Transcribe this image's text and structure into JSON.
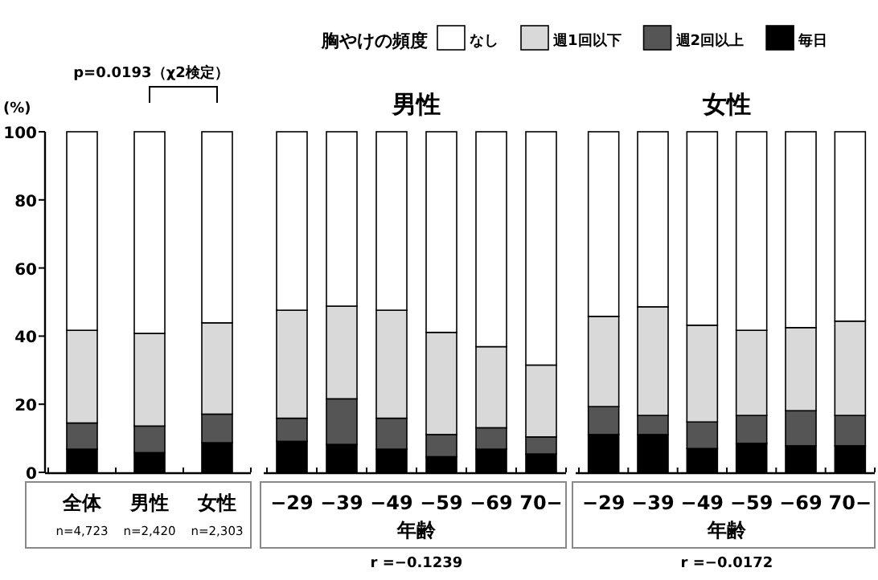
{
  "chart_data": [
    {
      "type": "bar",
      "stacked": true,
      "ylabel": "(%)",
      "legend_title": "胸やけの頻度",
      "legend": "top",
      "ylim": [
        0,
        100
      ],
      "yticks": [
        0,
        20,
        40,
        60,
        80,
        100
      ],
      "categories": [
        "全体\nn=4,723",
        "男性\nn=2,420",
        "女性\nn=2,303"
      ],
      "annotations": [
        "p=0.0193（χ2検定）"
      ],
      "series": [
        {
          "name": "毎日",
          "color": "#000000",
          "values": [
            6.8,
            5.8,
            8.7
          ]
        },
        {
          "name": "週2回以上",
          "color": "#555555",
          "values": [
            7.7,
            7.8,
            8.4
          ]
        },
        {
          "name": "週1回以下",
          "color": "#d9d9d9",
          "values": [
            27.2,
            27.2,
            26.8
          ]
        },
        {
          "name": "なし",
          "color": "#ffffff",
          "values": [
            58.3,
            59.2,
            56.1
          ]
        }
      ]
    },
    {
      "type": "bar",
      "stacked": true,
      "title": "男性",
      "xlabel": "年齢",
      "ylim": [
        0,
        100
      ],
      "tick_labels": "x",
      "categories": [
        "−29",
        "−39",
        "−49",
        "−59",
        "−69",
        "70−"
      ],
      "annotations": [
        "r =−0.1239"
      ],
      "series": [
        {
          "color": "#000000",
          "values": [
            9.1,
            8.2,
            6.8,
            4.6,
            6.8,
            5.4
          ]
        },
        {
          "color": "#555555",
          "values": [
            6.8,
            13.4,
            9.1,
            6.5,
            6.3,
            5.0
          ]
        },
        {
          "color": "#d9d9d9",
          "values": [
            31.7,
            27.2,
            31.7,
            30.0,
            23.8,
            21.1
          ]
        },
        {
          "color": "#ffffff",
          "values": [
            52.4,
            51.2,
            52.4,
            58.9,
            63.1,
            68.5
          ]
        }
      ]
    },
    {
      "type": "bar",
      "stacked": true,
      "title": "女性",
      "xlabel": "年齢",
      "ylim": [
        0,
        100
      ],
      "tick_labels": "x",
      "categories": [
        "−29",
        "−39",
        "−49",
        "−59",
        "−69",
        "70−"
      ],
      "annotations": [
        "r =−0.0172"
      ],
      "series": [
        {
          "color": "#000000",
          "values": [
            11.1,
            11.1,
            7.0,
            8.5,
            7.8,
            7.8
          ]
        },
        {
          "color": "#555555",
          "values": [
            8.2,
            5.6,
            7.8,
            8.2,
            10.3,
            8.9
          ]
        },
        {
          "color": "#d9d9d9",
          "values": [
            26.5,
            31.9,
            28.4,
            25.0,
            24.4,
            27.7
          ]
        },
        {
          "color": "#ffffff",
          "values": [
            54.2,
            51.4,
            56.8,
            58.3,
            57.5,
            55.6
          ]
        }
      ]
    }
  ]
}
